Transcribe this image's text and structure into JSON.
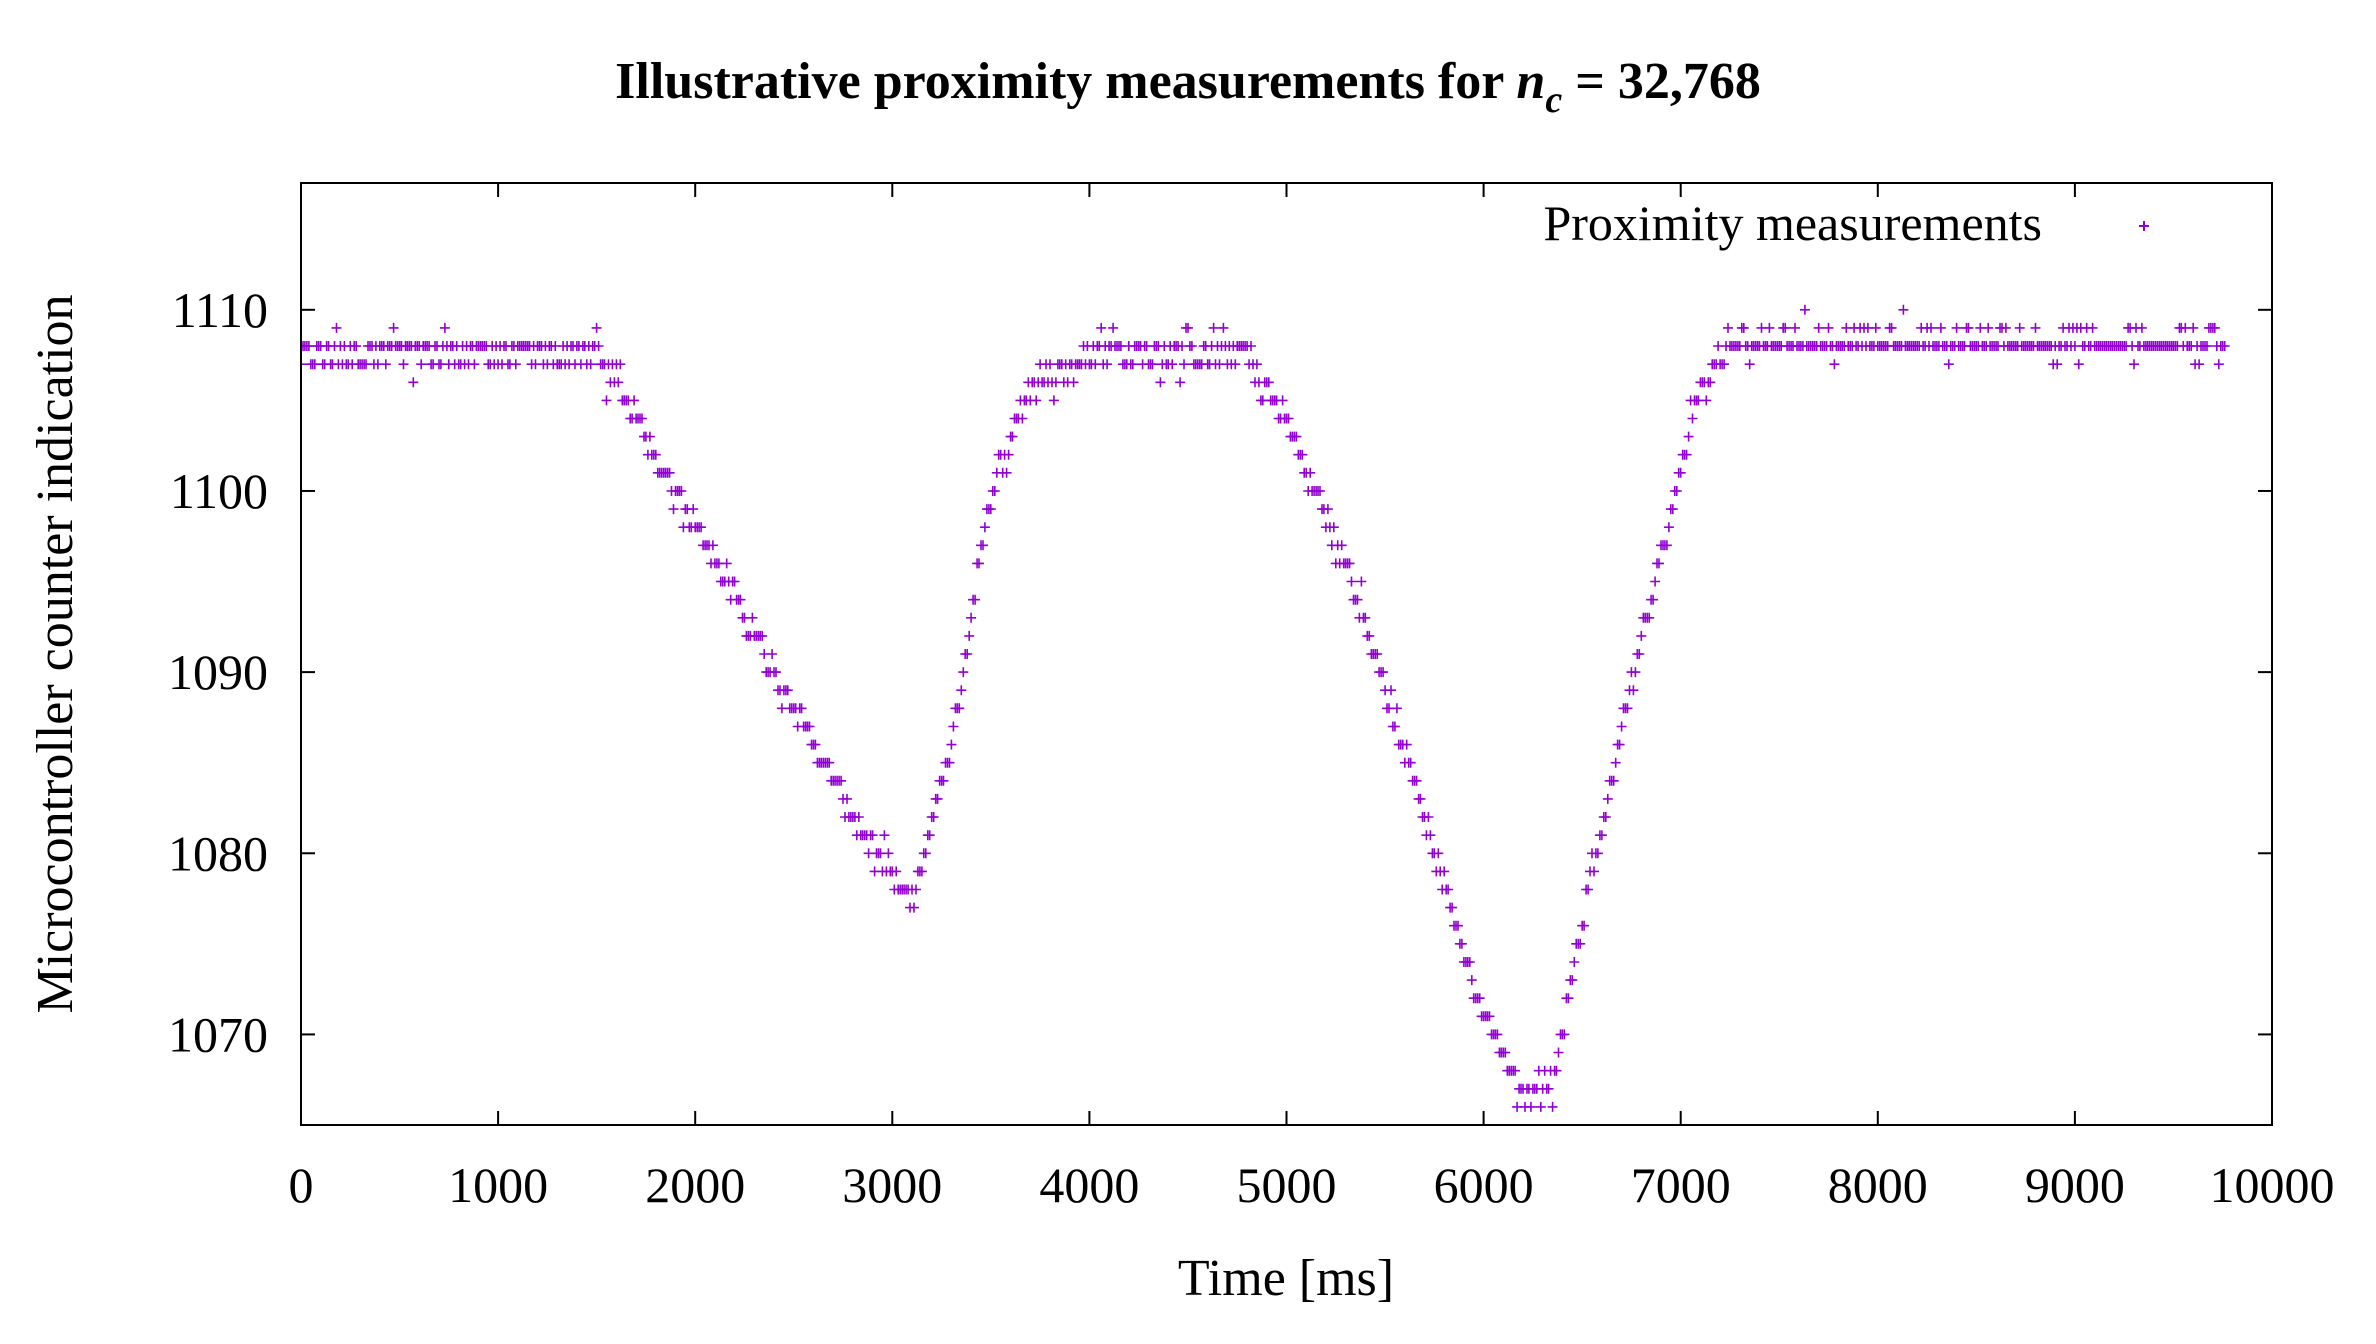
{
  "chart_data": {
    "type": "scatter",
    "title": {
      "prefix": "Illustrative proximity measurements for ",
      "var": "n",
      "sub": "c",
      "suffix": " = 32,768"
    },
    "xlabel": "Time [ms]",
    "ylabel": "Microcontroller counter indication",
    "xlim": [
      0,
      10000
    ],
    "ylim": [
      1065,
      1117
    ],
    "xticks": [
      0,
      1000,
      2000,
      3000,
      4000,
      5000,
      6000,
      7000,
      8000,
      9000,
      10000
    ],
    "yticks": [
      1070,
      1080,
      1090,
      1100,
      1110
    ],
    "grid": false,
    "legend": {
      "position": "top-right"
    },
    "series": [
      {
        "name": "Proximity measurements",
        "color": "#9400d3",
        "marker": "plus",
        "sample_interval_ms": 10,
        "profile_x": [
          0,
          1500,
          1700,
          2400,
          2800,
          3100,
          3300,
          3500,
          3700,
          4000,
          4800,
          5000,
          5300,
          5700,
          6000,
          6200,
          6350,
          6500,
          6800,
          7000,
          7100,
          7300,
          9760
        ],
        "profile_y": [
          1107.6,
          1107.6,
          1104,
          1090,
          1082,
          1077,
          1086,
          1100,
          1106,
          1107.6,
          1107.6,
          1104,
          1096,
          1082,
          1071,
          1067,
          1067.5,
          1076,
          1092,
          1101,
          1106,
          1108.2,
          1108.2
        ],
        "x_range": [
          0,
          9760
        ]
      }
    ]
  }
}
